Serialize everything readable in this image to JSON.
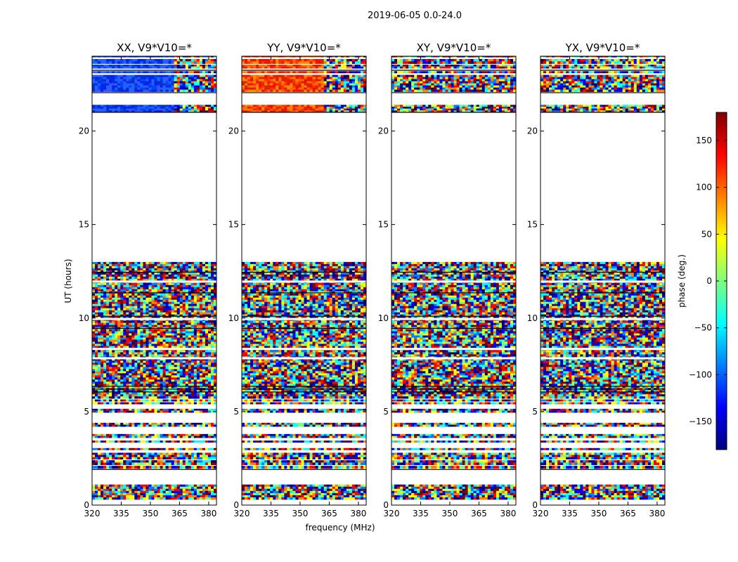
{
  "chart_data": {
    "type": "heatmap",
    "suptitle": "2019-06-05 0.0-24.0",
    "xlabel": "frequency (MHz)",
    "ylabel": "UT (hours)",
    "xlim": [
      320,
      384
    ],
    "ylim": [
      0,
      24
    ],
    "xticks": [
      320,
      335,
      350,
      365,
      380
    ],
    "yticks": [
      0,
      5,
      10,
      15,
      20
    ],
    "colorbar": {
      "label": "phase (deg.)",
      "range": [
        -180,
        180
      ],
      "ticks": [
        150,
        100,
        50,
        0,
        -50,
        -100,
        -150
      ],
      "tick_labels": [
        "150",
        "100",
        "50",
        "0",
        "−50",
        "−100",
        "−150"
      ],
      "colormap": [
        "#00007f",
        "#0000ff",
        "#007fff",
        "#00ffff",
        "#7fff7f",
        "#ffff00",
        "#ff7f00",
        "#ff0000",
        "#7f0000"
      ]
    },
    "panels": [
      {
        "title": "XX, V9*V10=*",
        "mode": "noise",
        "upper_palette": [
          "#0022ee",
          "#0044ff",
          "#1a66ff",
          "#3355ff",
          "#0033cc"
        ]
      },
      {
        "title": "YY, V9*V10=*",
        "mode": "noise",
        "upper_palette": [
          "#ff3300",
          "#ff6600",
          "#ee1100",
          "#ff8800",
          "#dd2200"
        ]
      },
      {
        "title": "XY, V9*V10=*",
        "mode": "noise",
        "upper_palette": null
      },
      {
        "title": "YX, V9*V10=*",
        "mode": "noise",
        "upper_palette": null
      }
    ],
    "data_bands_hours": [
      [
        0.3,
        1.1
      ],
      [
        1.95,
        2.1
      ],
      [
        2.15,
        2.4
      ],
      [
        2.45,
        2.8
      ],
      [
        2.95,
        3.05
      ],
      [
        3.35,
        3.45
      ],
      [
        3.6,
        3.8
      ],
      [
        4.2,
        4.4
      ],
      [
        4.95,
        5.15
      ],
      [
        5.4,
        5.5
      ],
      [
        5.55,
        5.65
      ],
      [
        5.7,
        13.0
      ],
      [
        21.0,
        21.4
      ],
      [
        22.1,
        23.0
      ],
      [
        23.1,
        23.2
      ],
      [
        23.35,
        23.55
      ],
      [
        23.6,
        23.85
      ],
      [
        23.95,
        24.0
      ]
    ],
    "empty_rows_hours": [
      7.85,
      8.35,
      9.95,
      11.95
    ],
    "flag_lines_hours": [
      6.05,
      6.2,
      6.35,
      9.45,
      10.1,
      11.35,
      12.45,
      21.0,
      22.05,
      23.25,
      24.0
    ]
  }
}
